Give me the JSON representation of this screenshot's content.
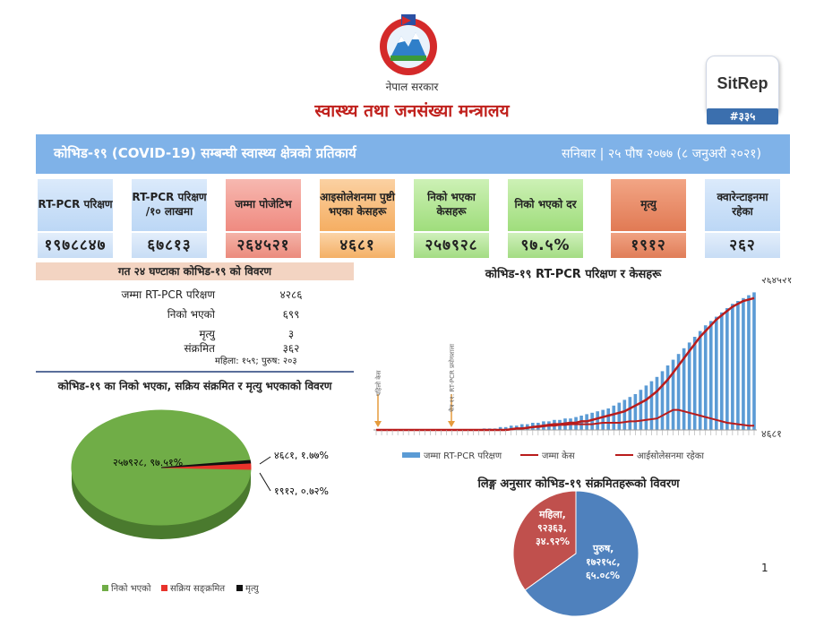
{
  "header": {
    "gov_label": "नेपाल सरकार",
    "ministry": "स्वास्थ्य तथा जनसंख्या मन्त्रालय",
    "sitrep_label": "SitRep",
    "sitrep_number": "#३३५"
  },
  "banner": {
    "title": "कोभिड-१९ (COVID-19) सम्बन्घी स्वास्थ्य क्षेत्रको प्रतिकार्य",
    "date": "सनिबार | २५ पौष २०७७ (८ जनुअरी २०२१)"
  },
  "cards": [
    {
      "label": "RT-PCR परिक्षण",
      "value": "१९७८८४७",
      "style": "blue"
    },
    {
      "label": "RT-PCR परिक्षण /१० लाखमा",
      "value": "६७८१३",
      "style": "blue"
    },
    {
      "label": "जम्मा पोजेटिभ",
      "value": "२६४५२१",
      "style": "red"
    },
    {
      "label": "आइसोलेशनमा पुष्टी भएका केसहरू",
      "value": "४६८१",
      "style": "orange"
    },
    {
      "label": "निको भएका केसहरू",
      "value": "२५७९२८",
      "style": "green"
    },
    {
      "label": "निको भएको दर",
      "value": "९७.५%",
      "style": "green"
    },
    {
      "label": "मृत्यु",
      "value": "१९१२",
      "style": "rust"
    },
    {
      "label": "क्वारेन्टाइनमा रहेका",
      "value": "२६२",
      "style": "blue"
    }
  ],
  "daily": {
    "title": "गत २४ घण्टाका कोभिड-१९ को विवरण",
    "rows": [
      {
        "label": "जम्मा RT-PCR परिक्षण",
        "value": "४२८६"
      },
      {
        "label": "निको भएको",
        "value": "६९९"
      },
      {
        "label": "मृत्यु",
        "value": "३"
      },
      {
        "label": "संक्रमित",
        "value": "३६२"
      }
    ],
    "sub": "महिला: १५९; पुरुष: २०३"
  },
  "chart_data": [
    {
      "type": "pie",
      "title": "कोभिड-१९ का निको भएका, सक्रिय संक्रमित र मृत्यु भएकाको विवरण",
      "categories": [
        "निको भएको",
        "सक्रिय सङ्क्रमित",
        "मृत्यु"
      ],
      "values": [
        257928,
        4681,
        1912
      ],
      "data_labels": [
        "२५७९२८, ९७.५१%",
        "४६८१, १.७७%",
        "१९१२, ०.७२%"
      ],
      "colors": [
        "#70ad47",
        "#e8322b",
        "#111111"
      ],
      "legend": "bottom"
    },
    {
      "type": "bar",
      "title": "कोभिड-१९ RT-PCR परिक्षण र केसहरू",
      "series": [
        {
          "name": "जम्मा RT-PCR परिक्षण",
          "type": "bar",
          "color": "#5b9bd5",
          "values": [
            0,
            0,
            0,
            0,
            0,
            0,
            0,
            0,
            0,
            0,
            0,
            0,
            0,
            0,
            0,
            0,
            0,
            0,
            0,
            0,
            1,
            1,
            1,
            2,
            2,
            3,
            3,
            4,
            4,
            5,
            5,
            6,
            6,
            7,
            7,
            8,
            8,
            9,
            10,
            11,
            12,
            13,
            14,
            15,
            17,
            19,
            21,
            23,
            25,
            28,
            31,
            34,
            37,
            41,
            45,
            49,
            53,
            57,
            61,
            65,
            69,
            73,
            76,
            79,
            82,
            85,
            88,
            90,
            92,
            94,
            96
          ]
        },
        {
          "name": "जम्मा केस",
          "type": "line",
          "color": "#b91c1c",
          "values": [
            0,
            0,
            0,
            0,
            0,
            0,
            0,
            0,
            0,
            0,
            0,
            0,
            0,
            0,
            0,
            0,
            0,
            0,
            0,
            0,
            0,
            0,
            0,
            0,
            0,
            0.5,
            1,
            1,
            1.5,
            2,
            2.5,
            3,
            3.5,
            4,
            4,
            4.5,
            5,
            5,
            6,
            6,
            7,
            8,
            9,
            10,
            11,
            12,
            13,
            15,
            17,
            19,
            21,
            24,
            27,
            31,
            35,
            40,
            45,
            50,
            55,
            60,
            65,
            69,
            73,
            77,
            80,
            83,
            86,
            88,
            90,
            91,
            92
          ]
        },
        {
          "name": "आईसोलेसनमा रहेका",
          "type": "line",
          "color": "#b91c1c",
          "values": [
            0,
            0,
            0,
            0,
            0,
            0,
            0,
            0,
            0,
            0,
            0,
            0,
            0,
            0,
            0,
            0,
            0,
            0,
            0,
            0,
            0,
            0,
            0,
            0,
            0,
            0.5,
            1,
            1,
            1.5,
            2,
            2,
            2.5,
            3,
            3,
            3.5,
            3.5,
            4,
            4,
            4,
            4,
            4,
            4.5,
            5,
            5,
            5,
            5,
            5.5,
            6,
            6,
            6.5,
            7,
            7.5,
            8,
            10,
            12,
            14,
            14,
            13,
            12,
            11,
            10,
            9,
            8,
            7,
            6,
            5,
            4.5,
            4,
            3.5,
            3,
            3
          ]
        }
      ],
      "end_labels": {
        "total_cases": "२६४५२१",
        "isolation": "४६८१"
      },
      "annotations": [
        "पहिलो केस",
        "चैत्र ११: RT-PCR प्रयोगशाला"
      ],
      "ylim": [
        0,
        100
      ],
      "legend": "bottom"
    },
    {
      "type": "pie",
      "title": "लिङ्ग अनुसार कोभिड-१९ संक्रमितहरूको विवरण",
      "categories": [
        "महिला",
        "पुरुष"
      ],
      "values": [
        92363,
        172158
      ],
      "data_labels": [
        "महिला, ९२३६३, ३४.९२%",
        "पुरुष, १७२१५८, ६५.०८%"
      ],
      "colors": [
        "#c0504d",
        "#4f81bd"
      ]
    }
  ],
  "page_number": "1"
}
